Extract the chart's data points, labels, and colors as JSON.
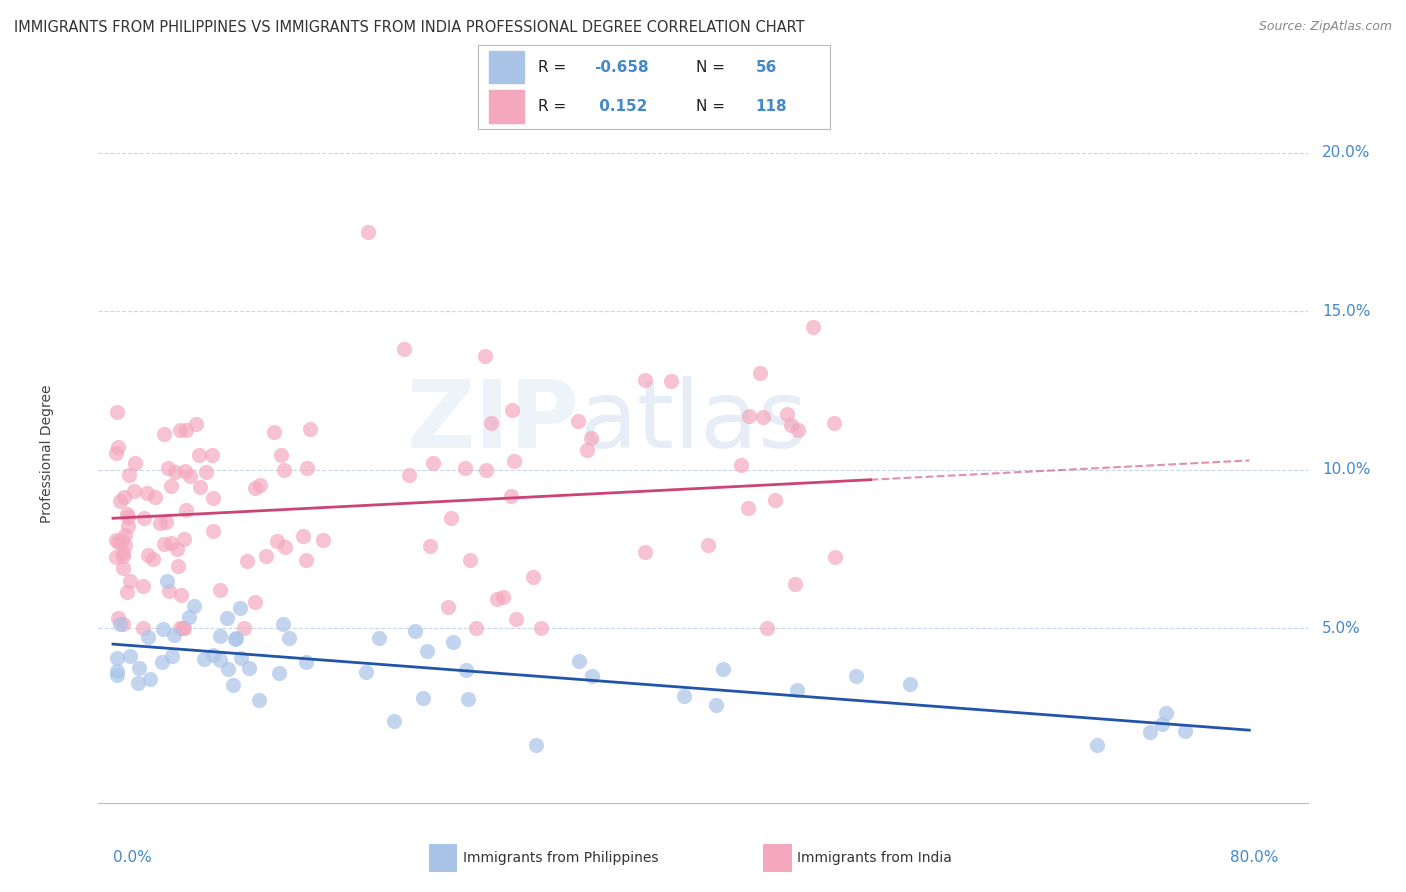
{
  "title": "IMMIGRANTS FROM PHILIPPINES VS IMMIGRANTS FROM INDIA PROFESSIONAL DEGREE CORRELATION CHART",
  "source": "Source: ZipAtlas.com",
  "ylabel": "Professional Degree",
  "xtick_left": "0.0%",
  "xtick_right": "80.0%",
  "ytick_vals": [
    5.0,
    10.0,
    15.0,
    20.0
  ],
  "ytick_labels": [
    "5.0%",
    "10.0%",
    "15.0%",
    "20.0%"
  ],
  "series1_label": "Immigrants from Philippines",
  "series2_label": "Immigrants from India",
  "series1_R": "-0.658",
  "series1_N": "56",
  "series2_R": "0.152",
  "series2_N": "118",
  "series1_color": "#aac4e8",
  "series2_color": "#f4a8be",
  "series1_trend_color": "#2255aa",
  "series2_trend_color": "#cc4477",
  "label_color": "#4488cc",
  "grid_color": "#c8d8ea",
  "background_color": "#ffffff",
  "xlim_data": [
    0,
    80
  ],
  "ylim_data": [
    0,
    21
  ],
  "legend_R1": "R = -0.658",
  "legend_N1": "N = 56",
  "legend_R2": "R =  0.152",
  "legend_N2": "N = 118"
}
